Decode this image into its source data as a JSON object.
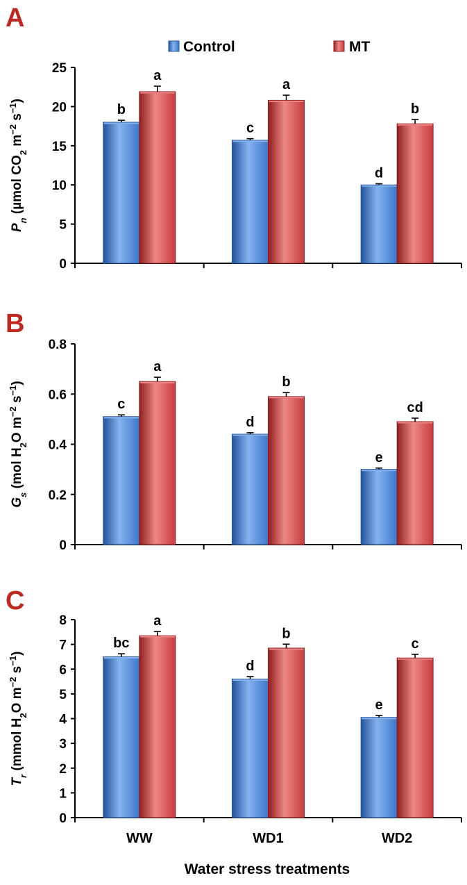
{
  "colors": {
    "control": "#3d78cc",
    "control_dark": "#22549c",
    "control_light": "#86b2ee",
    "mt": "#c93b3b",
    "mt_dark": "#921f1f",
    "mt_light": "#ec8888",
    "panel_letter": "#c0281f",
    "axis": "#000000"
  },
  "legend": {
    "control": "Control",
    "mt": "MT"
  },
  "xlabel": "Water stress treatments",
  "chart_data": [
    {
      "type": "bar",
      "panel": "A",
      "ylabel": {
        "parts": [
          {
            "t": "P",
            "style": "italic"
          },
          {
            "t": "n",
            "style": "italic-sub"
          },
          {
            "t": " (µmol CO",
            "style": "normal"
          },
          {
            "t": "2",
            "style": "sub"
          },
          {
            "t": " m",
            "style": "normal"
          },
          {
            "t": "−2",
            "style": "sup"
          },
          {
            "t": " s",
            "style": "normal"
          },
          {
            "t": "−1",
            "style": "sup"
          },
          {
            "t": ")",
            "style": "normal"
          }
        ]
      },
      "categories": [
        "WW",
        "WD1",
        "WD2"
      ],
      "ylim": [
        0,
        25
      ],
      "yticks": [
        "0",
        "5",
        "10",
        "15",
        "20",
        "25"
      ],
      "series": [
        {
          "name": "Control",
          "values": [
            18.0,
            15.7,
            10.0
          ],
          "errors": [
            0.25,
            0.2,
            0.15
          ],
          "labels": [
            "b",
            "c",
            "d"
          ]
        },
        {
          "name": "MT",
          "values": [
            21.9,
            20.8,
            17.8
          ],
          "errors": [
            0.7,
            0.65,
            0.55
          ],
          "labels": [
            "a",
            "a",
            "b"
          ]
        }
      ]
    },
    {
      "type": "bar",
      "panel": "B",
      "ylabel": {
        "parts": [
          {
            "t": "G",
            "style": "italic"
          },
          {
            "t": "s",
            "style": "italic-sub"
          },
          {
            "t": " (mol H",
            "style": "normal"
          },
          {
            "t": "2",
            "style": "sub"
          },
          {
            "t": "O m",
            "style": "normal"
          },
          {
            "t": "−2",
            "style": "sup"
          },
          {
            "t": " s",
            "style": "normal"
          },
          {
            "t": "−1",
            "style": "sup"
          },
          {
            "t": ")",
            "style": "normal"
          }
        ]
      },
      "categories": [
        "WW",
        "WD1",
        "WD2"
      ],
      "ylim": [
        0,
        0.8
      ],
      "yticks": [
        "0",
        "0.2",
        "0.4",
        "0.6",
        "0.8"
      ],
      "series": [
        {
          "name": "Control",
          "values": [
            0.51,
            0.44,
            0.3
          ],
          "errors": [
            0.007,
            0.006,
            0.005
          ],
          "labels": [
            "c",
            "d",
            "e"
          ]
        },
        {
          "name": "MT",
          "values": [
            0.65,
            0.59,
            0.49
          ],
          "errors": [
            0.017,
            0.016,
            0.014
          ],
          "labels": [
            "a",
            "b",
            "cd"
          ]
        }
      ]
    },
    {
      "type": "bar",
      "panel": "C",
      "ylabel": {
        "parts": [
          {
            "t": "T",
            "style": "italic"
          },
          {
            "t": "r",
            "style": "italic-sub"
          },
          {
            "t": " (mmol H",
            "style": "normal"
          },
          {
            "t": "2",
            "style": "sub"
          },
          {
            "t": "O m",
            "style": "normal"
          },
          {
            "t": "−2",
            "style": "sup"
          },
          {
            "t": " s",
            "style": "normal"
          },
          {
            "t": "−1",
            "style": "sup"
          },
          {
            "t": ")",
            "style": "normal"
          }
        ]
      },
      "categories": [
        "WW",
        "WD1",
        "WD2"
      ],
      "ylim": [
        0,
        8
      ],
      "yticks": [
        "0",
        "1",
        "2",
        "3",
        "4",
        "5",
        "6",
        "7",
        "8"
      ],
      "series": [
        {
          "name": "Control",
          "values": [
            6.5,
            5.6,
            4.05
          ],
          "errors": [
            0.12,
            0.1,
            0.08
          ],
          "labels": [
            "bc",
            "d",
            "e"
          ]
        },
        {
          "name": "MT",
          "values": [
            7.35,
            6.85,
            6.45
          ],
          "errors": [
            0.17,
            0.16,
            0.15
          ],
          "labels": [
            "a",
            "b",
            "c"
          ]
        }
      ]
    }
  ]
}
